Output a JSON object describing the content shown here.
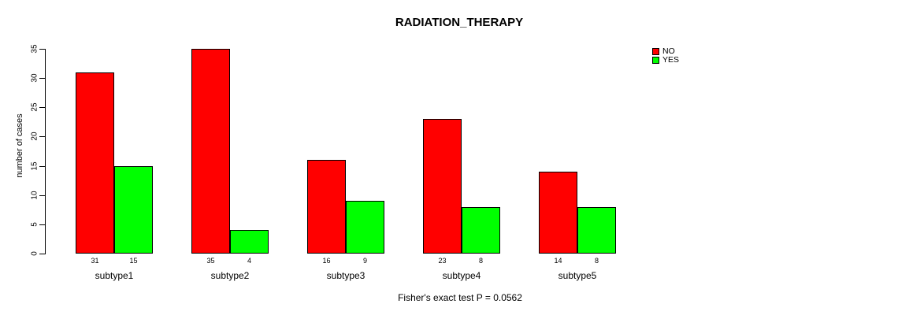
{
  "chart_data": {
    "type": "bar",
    "title": "RADIATION_THERAPY",
    "xlabel": "",
    "ylabel": "number of cases",
    "categories": [
      "subtype1",
      "subtype2",
      "subtype3",
      "subtype4",
      "subtype5"
    ],
    "series": [
      {
        "name": "NO",
        "color": "#FF0000",
        "values": [
          31,
          35,
          16,
          23,
          14
        ]
      },
      {
        "name": "YES",
        "color": "#00FF00",
        "values": [
          15,
          4,
          9,
          8,
          8
        ]
      }
    ],
    "ylim": [
      0,
      35
    ],
    "yticks": [
      0,
      5,
      10,
      15,
      20,
      25,
      30,
      35
    ],
    "grid": false,
    "bar_value_labels_shown": true,
    "legend_position": "top-right",
    "footnote": "Fisher's exact test P = 0.0562"
  }
}
